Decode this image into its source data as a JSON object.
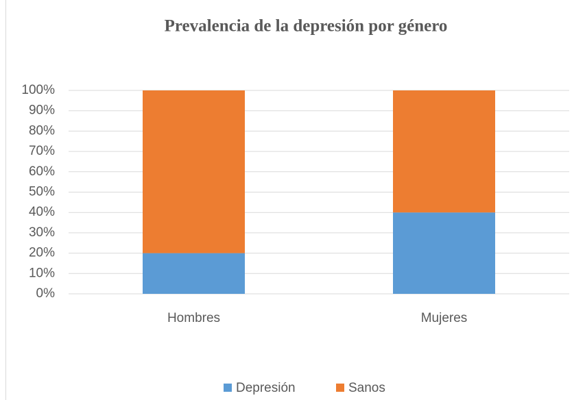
{
  "chart_data": {
    "type": "stacked_bar",
    "title": "Prevalencia de la depresión por género",
    "categories": [
      "Hombres",
      "Mujeres"
    ],
    "series": [
      {
        "name": "Depresión",
        "color": "#5b9bd5",
        "values": [
          20,
          40
        ]
      },
      {
        "name": "Sanos",
        "color": "#ed7d31",
        "values": [
          80,
          60
        ]
      }
    ],
    "ylim": [
      0,
      100
    ],
    "yticks": [
      {
        "value": 0,
        "label": "0%"
      },
      {
        "value": 10,
        "label": "10%"
      },
      {
        "value": 20,
        "label": "20%"
      },
      {
        "value": 30,
        "label": "30%"
      },
      {
        "value": 40,
        "label": "40%"
      },
      {
        "value": 50,
        "label": "50%"
      },
      {
        "value": 60,
        "label": "60%"
      },
      {
        "value": 70,
        "label": "70%"
      },
      {
        "value": 80,
        "label": "80%"
      },
      {
        "value": 90,
        "label": "90%"
      },
      {
        "value": 100,
        "label": "100%"
      }
    ],
    "grid": true,
    "legend": "bottom"
  }
}
